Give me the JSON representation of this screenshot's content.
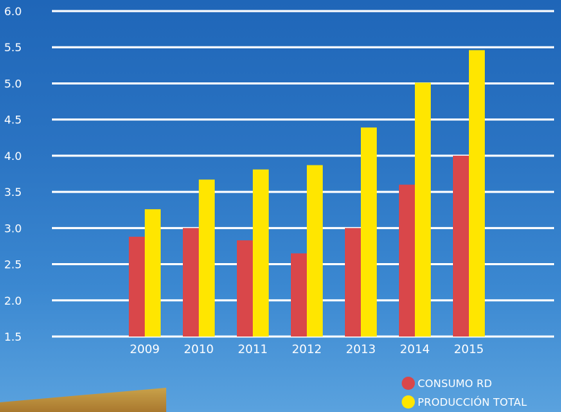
{
  "chart_data": {
    "type": "bar",
    "categories": [
      "2009",
      "2010",
      "2011",
      "2012",
      "2013",
      "2014",
      "2015"
    ],
    "series": [
      {
        "name": "CONSUMO RD",
        "values": [
          2.88,
          3.0,
          2.83,
          2.65,
          3.0,
          3.6,
          4.0
        ],
        "color": "#d9474a"
      },
      {
        "name": "PRODUCCIÓN TOTAL",
        "values": [
          3.26,
          3.67,
          3.81,
          3.87,
          4.39,
          5.01,
          5.46
        ],
        "color": "#ffe600"
      }
    ],
    "ylim": [
      1.5,
      6.0
    ],
    "yticks": [
      "1.5",
      "2.0",
      "2.5",
      "3.0",
      "3.5",
      "4.0",
      "4.5",
      "5.0",
      "5.5",
      "6.0"
    ],
    "grid": true,
    "legend_position": "bottom-right",
    "xlabel": "",
    "ylabel": ""
  },
  "legend": {
    "items": [
      {
        "label": "CONSUMO RD",
        "color": "#d9474a"
      },
      {
        "label": "PRODUCCIÓN TOTAL",
        "color": "#ffe600"
      }
    ]
  }
}
